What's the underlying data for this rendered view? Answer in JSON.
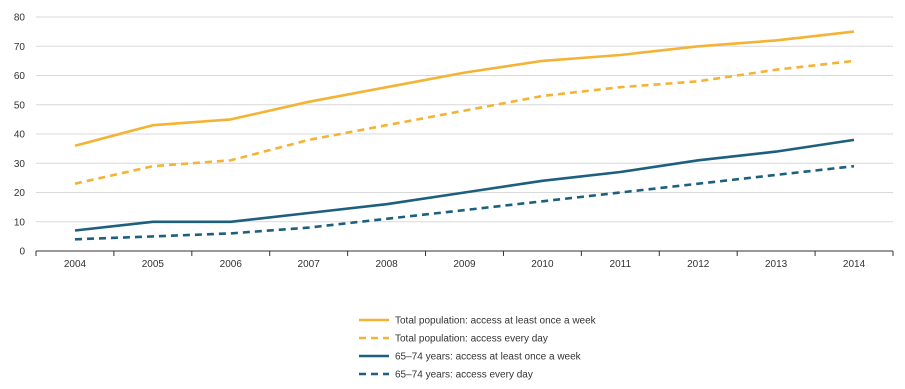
{
  "chart_data": {
    "type": "line",
    "title": "",
    "xlabel": "",
    "ylabel": "",
    "x": [
      "2004",
      "2005",
      "2006",
      "2007",
      "2008",
      "2009",
      "2010",
      "2011",
      "2012",
      "2013",
      "2014"
    ],
    "ylim": [
      0,
      80
    ],
    "yticks": [
      0,
      10,
      20,
      30,
      40,
      50,
      60,
      70,
      80
    ],
    "grid": true,
    "legend_position": "bottom",
    "series": [
      {
        "name": "Total population: access at least once a week",
        "color": "#f5b335",
        "dash": "solid",
        "values": [
          36,
          43,
          45,
          51,
          56,
          61,
          65,
          67,
          70,
          72,
          75
        ]
      },
      {
        "name": "Total population: access every day",
        "color": "#f5b335",
        "dash": "dashed",
        "values": [
          23,
          29,
          31,
          38,
          43,
          48,
          53,
          56,
          58,
          62,
          65
        ]
      },
      {
        "name": "65–74 years: access at least once a week",
        "color": "#1d5f7f",
        "dash": "solid",
        "values": [
          7,
          10,
          10,
          13,
          16,
          20,
          24,
          27,
          31,
          34,
          38
        ]
      },
      {
        "name": "65–74 years: access every day",
        "color": "#1d5f7f",
        "dash": "dashed",
        "values": [
          4,
          5,
          6,
          8,
          11,
          14,
          17,
          20,
          23,
          26,
          29
        ]
      }
    ]
  }
}
